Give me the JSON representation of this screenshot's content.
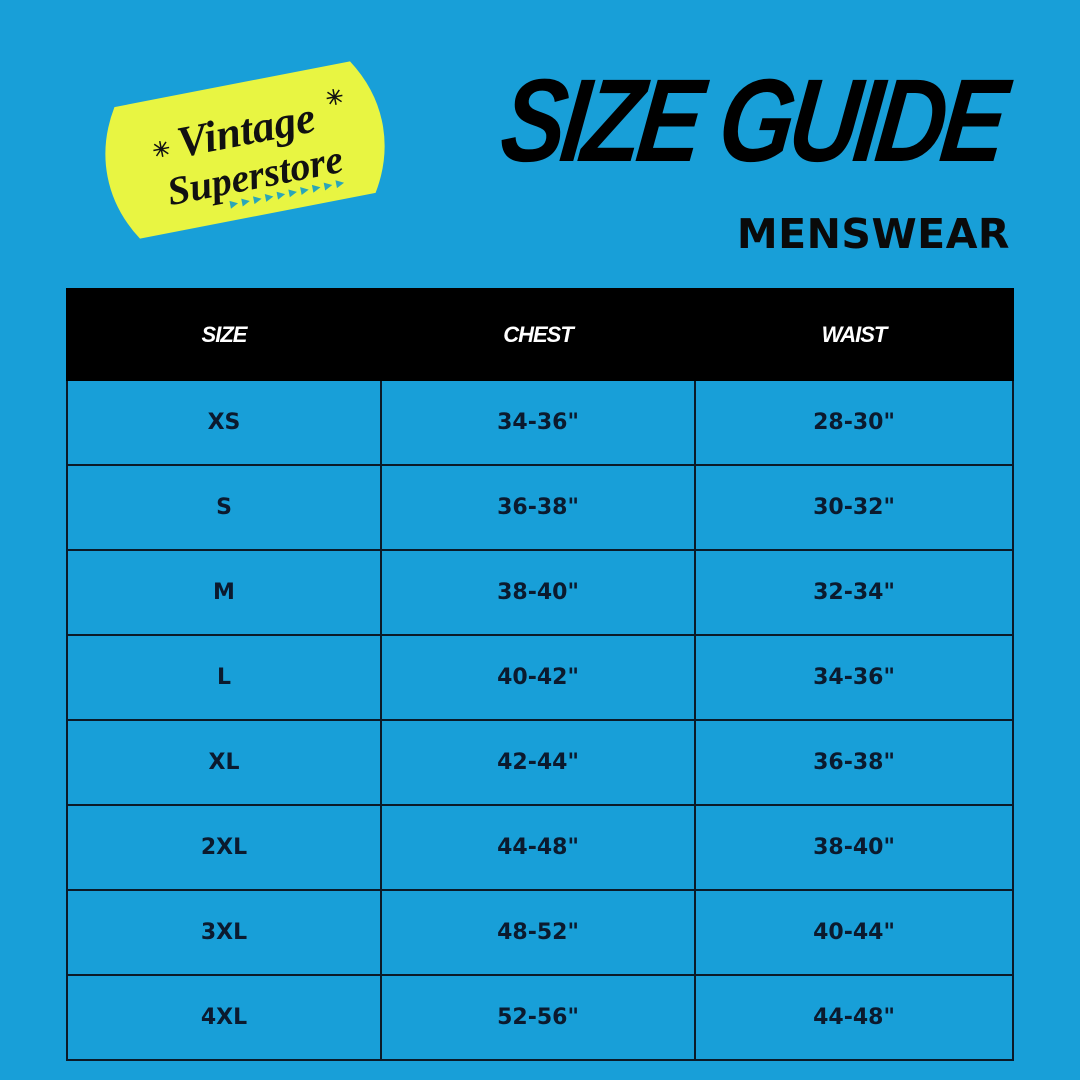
{
  "logo": {
    "line1": "Vintage",
    "line2": "Superstore",
    "bg_color": "#e8f542",
    "accent_color": "#2aa6b8"
  },
  "header": {
    "title": "SIZE GUIDE",
    "subtitle": "MENSWEAR"
  },
  "table": {
    "columns": [
      "SIZE",
      "CHEST",
      "WAIST"
    ],
    "rows": [
      [
        "XS",
        "34-36\"",
        "28-30\""
      ],
      [
        "S",
        "36-38\"",
        "30-32\""
      ],
      [
        "M",
        "38-40\"",
        "32-34\""
      ],
      [
        "L",
        "40-42\"",
        "34-36\""
      ],
      [
        "XL",
        "42-44\"",
        "36-38\""
      ],
      [
        "2XL",
        "44-48\"",
        "38-40\""
      ],
      [
        "3XL",
        "48-52\"",
        "40-44\""
      ],
      [
        "4XL",
        "52-56\"",
        "44-48\""
      ]
    ]
  },
  "colors": {
    "background": "#189fd8",
    "header_bg": "#000000"
  }
}
